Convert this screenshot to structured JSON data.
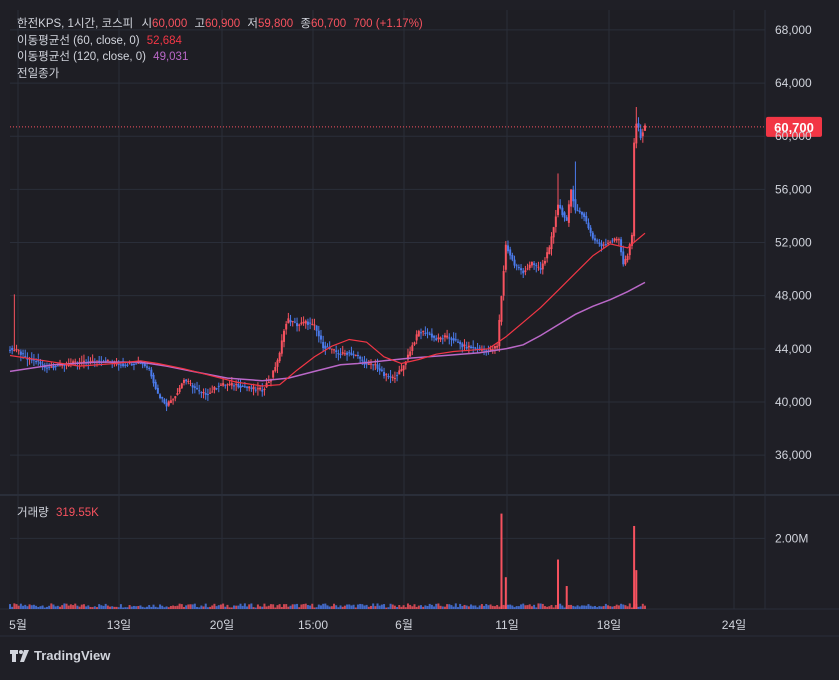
{
  "header": {
    "symbol_label": "한전KPS, 1시간, 코스피",
    "open_label": "시",
    "open_value": "60,000",
    "high_label": "고",
    "high_value": "60,900",
    "low_label": "저",
    "low_value": "59,800",
    "close_label": "종",
    "close_value": "60,700",
    "change": "700 (+1.17%)",
    "ma60_label": "이동평균선 (60, close, 0)",
    "ma60_value": "52,684",
    "ma120_label": "이동평균선 (120, close, 0)",
    "ma120_value": "49,031",
    "prev_close_label": "전일종가",
    "volume_label": "거래량",
    "volume_value": "319.55K",
    "price_tag": "60,700"
  },
  "colors": {
    "up": "#f7525f",
    "down": "#4b7bec",
    "ma60": "#f23645",
    "ma120": "#ba68c8",
    "background": "#1f1f26",
    "grid": "#2a2e39",
    "text": "#d1d4dc"
  },
  "footer": {
    "brand": "TradingView"
  },
  "chart_data": {
    "type": "candlestick",
    "y_axis": {
      "ticks": [
        "68,000",
        "64,000",
        "56,000",
        "52,000",
        "48,000",
        "44,000",
        "40,000",
        "36,000"
      ],
      "range": [
        33000,
        69500
      ],
      "hidden_tick": "60,000"
    },
    "volume_axis": {
      "ticks": [
        "2.00M"
      ],
      "range": [
        0,
        3000000
      ]
    },
    "x_axis": {
      "ticks": [
        "5월",
        "13일",
        "20일",
        "15:00",
        "6월",
        "11일",
        "18일",
        "24일"
      ]
    },
    "last_price": 60700,
    "series": [
      {
        "name": "이동평균선 (60, close, 0)",
        "last_value": 52684
      },
      {
        "name": "이동평균선 (120, close, 0)",
        "last_value": 49031
      }
    ],
    "price_path": [
      [
        0,
        44000
      ],
      [
        2,
        43800
      ],
      [
        4,
        43200
      ],
      [
        6,
        43100
      ],
      [
        8,
        42600
      ],
      [
        10,
        42700
      ],
      [
        14,
        42900
      ],
      [
        18,
        43000
      ],
      [
        22,
        43100
      ],
      [
        26,
        42800
      ],
      [
        30,
        43000
      ],
      [
        32,
        42500
      ],
      [
        34,
        40600
      ],
      [
        36,
        39800
      ],
      [
        38,
        40500
      ],
      [
        40,
        41700
      ],
      [
        42,
        41200
      ],
      [
        44,
        40600
      ],
      [
        46,
        40700
      ],
      [
        48,
        41300
      ],
      [
        52,
        41300
      ],
      [
        54,
        41100
      ],
      [
        58,
        40900
      ],
      [
        60,
        41800
      ],
      [
        62,
        43600
      ],
      [
        63,
        45500
      ],
      [
        64,
        46200
      ],
      [
        66,
        45800
      ],
      [
        68,
        46000
      ],
      [
        70,
        45700
      ],
      [
        72,
        44200
      ],
      [
        74,
        43900
      ],
      [
        76,
        43600
      ],
      [
        78,
        43700
      ],
      [
        80,
        43400
      ],
      [
        82,
        42800
      ],
      [
        84,
        42800
      ],
      [
        86,
        42000
      ],
      [
        88,
        41800
      ],
      [
        90,
        42400
      ],
      [
        92,
        43900
      ],
      [
        94,
        45300
      ],
      [
        96,
        45200
      ],
      [
        98,
        44700
      ],
      [
        100,
        44900
      ],
      [
        102,
        44700
      ],
      [
        104,
        44200
      ],
      [
        106,
        44100
      ],
      [
        108,
        44000
      ],
      [
        110,
        43800
      ],
      [
        112,
        44200
      ],
      [
        113,
        48000
      ],
      [
        114,
        51800
      ],
      [
        116,
        50300
      ],
      [
        118,
        49800
      ],
      [
        120,
        50400
      ],
      [
        122,
        50000
      ],
      [
        124,
        51500
      ],
      [
        126,
        54900
      ],
      [
        128,
        53500
      ],
      [
        129,
        56000
      ],
      [
        130,
        54500
      ],
      [
        132,
        54000
      ],
      [
        134,
        52300
      ],
      [
        136,
        51800
      ],
      [
        138,
        52100
      ],
      [
        140,
        52300
      ],
      [
        141,
        50400
      ],
      [
        142,
        51000
      ],
      [
        143,
        52500
      ],
      [
        143.5,
        59500
      ],
      [
        144,
        61000
      ],
      [
        145,
        60000
      ],
      [
        146,
        60700
      ]
    ],
    "spikes": [
      {
        "x": 1,
        "high": 48100
      },
      {
        "x": 113,
        "high": 48000
      },
      {
        "x": 126,
        "high": 57200
      },
      {
        "x": 130,
        "high": 58100
      },
      {
        "x": 144,
        "high": 62200
      }
    ],
    "ma60_path": [
      [
        0,
        43500
      ],
      [
        8,
        43100
      ],
      [
        16,
        42700
      ],
      [
        24,
        42900
      ],
      [
        30,
        43100
      ],
      [
        34,
        42900
      ],
      [
        40,
        42500
      ],
      [
        46,
        42000
      ],
      [
        52,
        41500
      ],
      [
        58,
        41200
      ],
      [
        62,
        41300
      ],
      [
        66,
        42400
      ],
      [
        70,
        43400
      ],
      [
        74,
        44200
      ],
      [
        78,
        44700
      ],
      [
        82,
        44500
      ],
      [
        86,
        43400
      ],
      [
        90,
        42900
      ],
      [
        94,
        43200
      ],
      [
        98,
        43600
      ],
      [
        102,
        43800
      ],
      [
        106,
        43900
      ],
      [
        110,
        44000
      ],
      [
        114,
        44900
      ],
      [
        118,
        46000
      ],
      [
        122,
        47100
      ],
      [
        126,
        48400
      ],
      [
        130,
        49700
      ],
      [
        134,
        51000
      ],
      [
        138,
        51900
      ],
      [
        142,
        51600
      ],
      [
        146,
        52700
      ]
    ],
    "ma120_path": [
      [
        0,
        42300
      ],
      [
        10,
        42800
      ],
      [
        20,
        43000
      ],
      [
        30,
        43000
      ],
      [
        36,
        42700
      ],
      [
        42,
        42300
      ],
      [
        50,
        41800
      ],
      [
        58,
        41600
      ],
      [
        64,
        41800
      ],
      [
        70,
        42300
      ],
      [
        76,
        42800
      ],
      [
        80,
        42900
      ],
      [
        86,
        43100
      ],
      [
        92,
        43300
      ],
      [
        100,
        43500
      ],
      [
        108,
        43700
      ],
      [
        114,
        44000
      ],
      [
        118,
        44300
      ],
      [
        122,
        45000
      ],
      [
        126,
        45800
      ],
      [
        130,
        46600
      ],
      [
        134,
        47200
      ],
      [
        138,
        47700
      ],
      [
        142,
        48300
      ],
      [
        146,
        49000
      ]
    ],
    "volume_spikes": [
      {
        "x": 113,
        "volume": 2700000
      },
      {
        "x": 114,
        "volume": 900000
      },
      {
        "x": 126,
        "volume": 1400000
      },
      {
        "x": 128,
        "volume": 650000
      },
      {
        "x": 143.5,
        "volume": 2350000
      },
      {
        "x": 144,
        "volume": 1100000
      }
    ]
  }
}
